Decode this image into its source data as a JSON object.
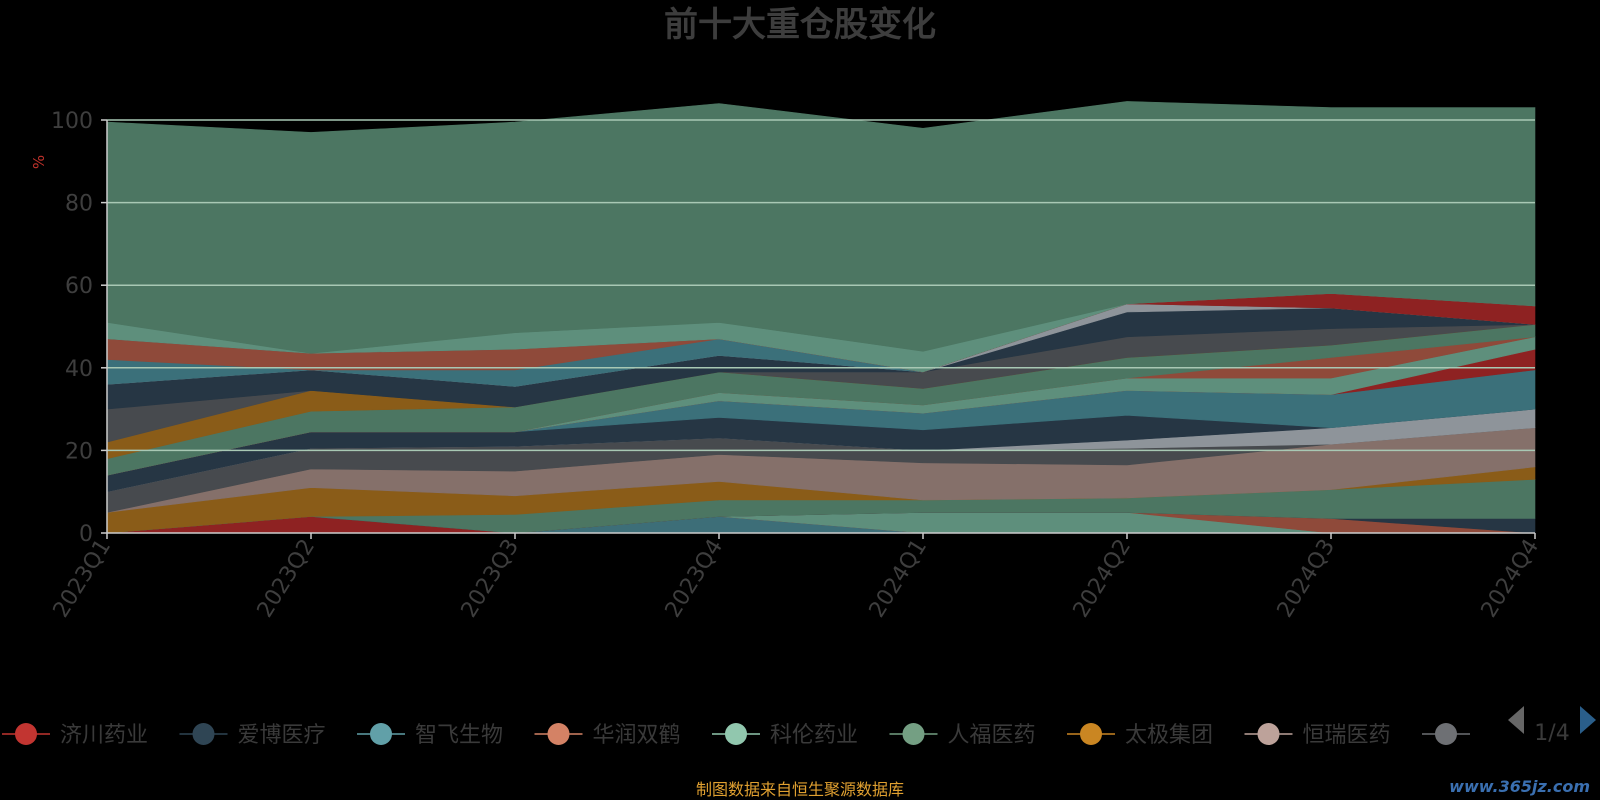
{
  "chart_data": {
    "type": "area",
    "title": "前十大重仓股变化",
    "ylabel": "%",
    "ylim": [
      0,
      100
    ],
    "yticks": [
      "0",
      "20",
      "40",
      "60",
      "80",
      "100"
    ],
    "categories": [
      "2023Q1",
      "2023Q2",
      "2023Q3",
      "2023Q4",
      "2024Q1",
      "2024Q2",
      "2024Q3",
      "2024Q4"
    ],
    "stacked": true,
    "grid": true,
    "legend_position": "bottom",
    "series": [
      {
        "name": "",
        "color": "#3d6e78",
        "values": [
          0,
          0,
          0,
          4,
          0,
          0,
          0,
          0
        ]
      },
      {
        "name": "济川药业",
        "color": "#8e2222",
        "values": [
          0,
          4,
          0,
          0,
          0,
          0,
          0,
          0
        ]
      },
      {
        "name": "",
        "color": "#5e8f7c",
        "values": [
          0,
          0,
          0,
          0,
          5,
          5,
          0,
          0
        ]
      },
      {
        "name": "",
        "color": "#8f4a3a",
        "values": [
          0,
          0,
          0,
          0,
          0,
          0,
          3.5,
          0
        ]
      },
      {
        "name": "",
        "color": "#263644",
        "values": [
          0,
          0,
          0,
          0,
          0,
          0,
          0,
          3.5
        ]
      },
      {
        "name": "",
        "color": "#4c7662",
        "values": [
          0,
          0,
          4.5,
          4,
          3,
          3.5,
          7,
          9.5
        ]
      },
      {
        "name": "太极集团",
        "color": "#8a5c18",
        "values": [
          5,
          7,
          4.5,
          4.5,
          0,
          0,
          0,
          3
        ]
      },
      {
        "name": "恒瑞医药",
        "color": "#85706a",
        "values": [
          0,
          4.5,
          6,
          6.5,
          9,
          8,
          11,
          9.5
        ]
      },
      {
        "name": "",
        "color": "#474a4e",
        "values": [
          5,
          5,
          6,
          4,
          3,
          4,
          0,
          0
        ]
      },
      {
        "name": "",
        "color": "#8e949a",
        "values": [
          0,
          0,
          0,
          0,
          0,
          2,
          4,
          4.5
        ]
      },
      {
        "name": "",
        "color": "#263644",
        "values": [
          4,
          4,
          3.5,
          5,
          5,
          6,
          0,
          0
        ]
      },
      {
        "name": "",
        "color": "#3b707a",
        "values": [
          0,
          0,
          0,
          4,
          4,
          6,
          8,
          9.5
        ]
      },
      {
        "name": "",
        "color": "#8e2222",
        "values": [
          0,
          0,
          0,
          0,
          0,
          0,
          0,
          5
        ]
      },
      {
        "name": "",
        "color": "#5e8f7c",
        "values": [
          0,
          0,
          0,
          2,
          2,
          3,
          4,
          3
        ]
      },
      {
        "name": "",
        "color": "#8f4a3a",
        "values": [
          0,
          0,
          0,
          0,
          0,
          0,
          5,
          0
        ]
      },
      {
        "name": "人福医药",
        "color": "#4c7662",
        "values": [
          4,
          5,
          6,
          5,
          4,
          5,
          3,
          3
        ]
      },
      {
        "name": "",
        "color": "#8a5c18",
        "values": [
          4,
          5,
          0,
          0,
          0,
          0,
          0,
          0
        ]
      },
      {
        "name": "",
        "color": "#474a4e",
        "values": [
          8,
          0,
          0,
          0,
          4,
          5,
          4,
          0
        ]
      },
      {
        "name": "",
        "color": "#263644",
        "values": [
          6,
          5,
          5,
          4,
          0,
          6,
          5,
          0
        ]
      },
      {
        "name": "",
        "color": "#8e949a",
        "values": [
          0,
          0,
          0,
          0,
          0,
          2,
          0,
          0
        ]
      },
      {
        "name": "",
        "color": "#3b707a",
        "values": [
          6,
          0,
          4,
          4,
          0,
          0,
          0,
          0
        ]
      },
      {
        "name": "华润双鹤",
        "color": "#8f4a3a",
        "values": [
          5,
          4,
          5,
          0,
          0,
          0,
          0,
          0
        ]
      },
      {
        "name": "",
        "color": "#8e2222",
        "values": [
          0,
          0,
          0,
          0,
          0,
          0,
          3.5,
          4.5
        ]
      },
      {
        "name": "科伦药业",
        "color": "#5e8f7c",
        "values": [
          4,
          0,
          4,
          4,
          5,
          0,
          0,
          0
        ]
      },
      {
        "name": "",
        "color": "#4c7662",
        "values": [
          48.5,
          53.5,
          51,
          53,
          54,
          49,
          45,
          48
        ]
      }
    ],
    "legend": [
      {
        "name": "济川药业",
        "color": "#c23531"
      },
      {
        "name": "爱博医疗",
        "color": "#2f4554"
      },
      {
        "name": "智飞生物",
        "color": "#61a0a8"
      },
      {
        "name": "华润双鹤",
        "color": "#d48265"
      },
      {
        "name": "科伦药业",
        "color": "#91c7ae"
      },
      {
        "name": "人福医药",
        "color": "#749f83"
      },
      {
        "name": "太极集团",
        "color": "#ca8622"
      },
      {
        "name": "恒瑞医药",
        "color": "#bda29a"
      },
      {
        "name": "",
        "color": "#6e7074"
      }
    ],
    "pagination": "1/4",
    "source": "制图数据来自恒生聚源数据库",
    "watermark": "www.365jz.com"
  }
}
